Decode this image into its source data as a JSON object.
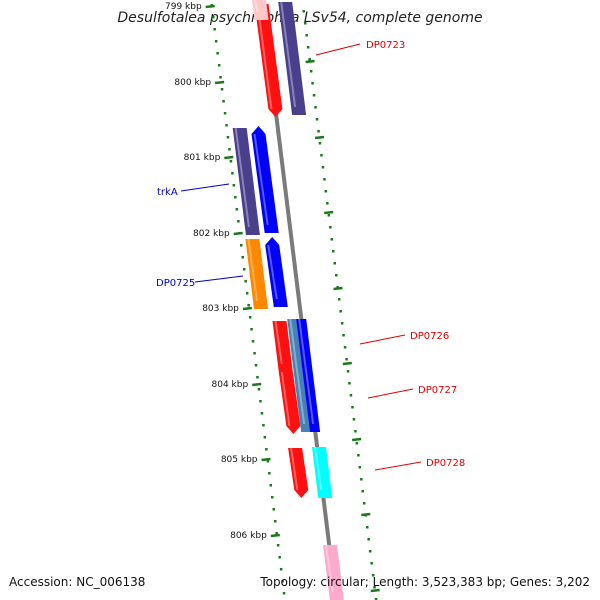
{
  "title": "Desulfotalea psychrophila LSv54, complete genome",
  "footer": {
    "accession": "Accession: NC_006138",
    "summary": "Topology: circular; Length: 3,523,383 bp; Genes: 3,202"
  },
  "ticks": [
    {
      "label": "799 kbp"
    },
    {
      "label": "800 kbp"
    },
    {
      "label": "801 kbp"
    },
    {
      "label": "802 kbp"
    },
    {
      "label": "803 kbp"
    },
    {
      "label": "804 kbp"
    },
    {
      "label": "805 kbp"
    },
    {
      "label": "806 kbp"
    }
  ],
  "gene_labels": [
    {
      "text": "DP0723",
      "color": "#dd0000"
    },
    {
      "text": "trkA",
      "color": "#0000cc"
    },
    {
      "text": "DP0725",
      "color": "#0000cc"
    },
    {
      "text": "DP0726",
      "color": "#dd0000"
    },
    {
      "text": "DP0727",
      "color": "#dd0000"
    },
    {
      "text": "DP0728",
      "color": "#dd0000"
    }
  ],
  "colors": {
    "backbone": "#7a7a7a",
    "tick_mark": "#1a7a1a",
    "red": "#ff1010",
    "pink": "#ffaacc",
    "light_pink": "#ffc8c8",
    "navy": "#4a3f8c",
    "blue": "#0000ff",
    "orange": "#ff8800",
    "steelblue": "#4682b4",
    "cyan": "#00ffff"
  }
}
